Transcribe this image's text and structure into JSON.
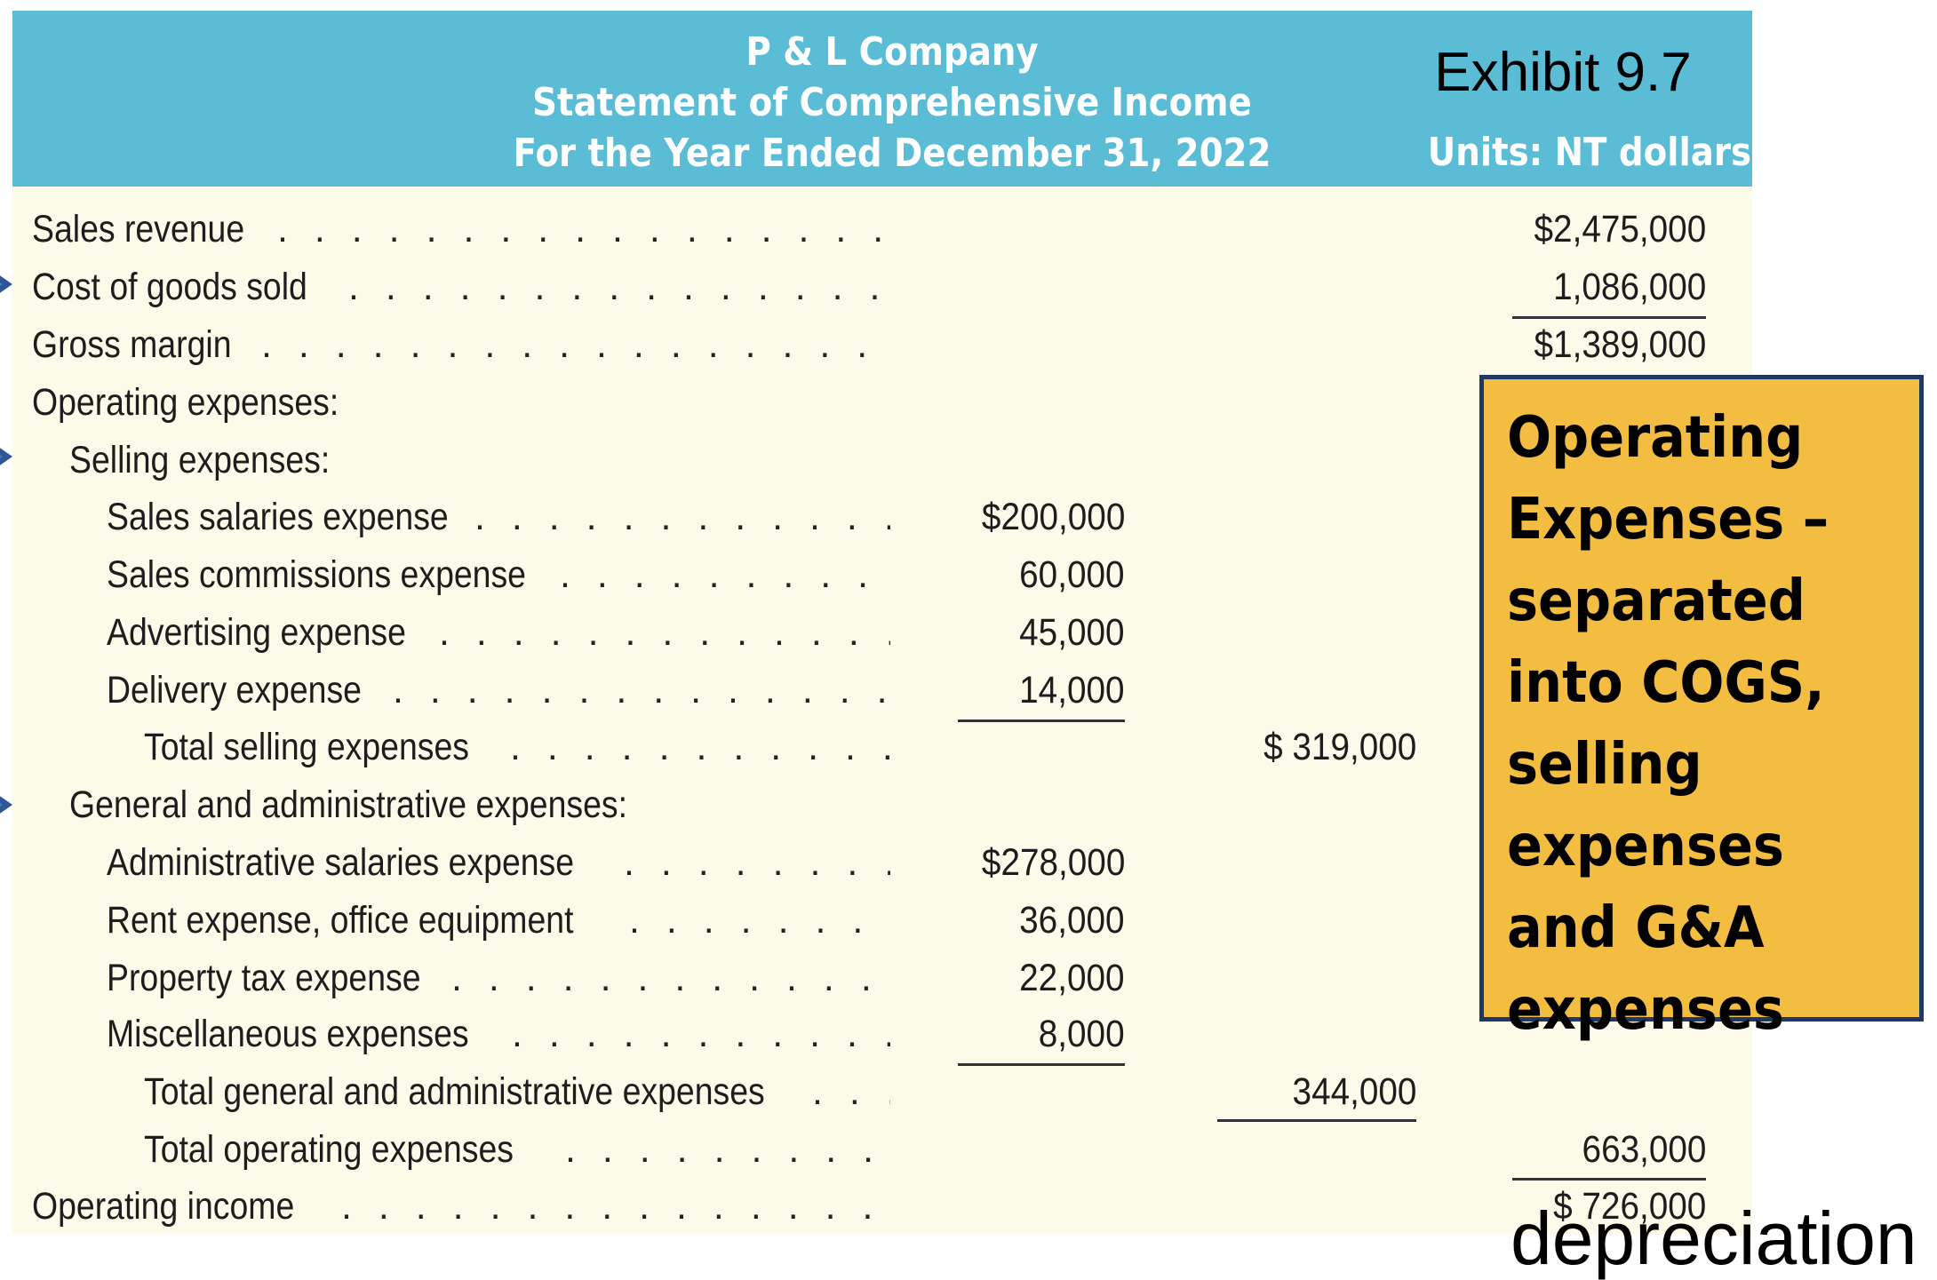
{
  "header": {
    "company": "P & L Company",
    "statement": "Statement of Comprehensive Income",
    "period": "For the Year Ended December 31, 2022",
    "exhibit": "Exhibit 9.7",
    "units": "Units: NT dollars"
  },
  "rows": [
    {
      "label": "Sales revenue",
      "c3": "$2,475,000"
    },
    {
      "label": "Cost of goods sold",
      "c3": "1,086,000"
    },
    {
      "label": "Gross margin",
      "c3": "$1,389,000"
    },
    {
      "label": "Operating expenses:"
    },
    {
      "label": "Selling expenses:"
    },
    {
      "label": "Sales salaries expense",
      "c1": "$200,000"
    },
    {
      "label": "Sales commissions expense",
      "c1": "60,000"
    },
    {
      "label": "Advertising expense",
      "c1": "45,000"
    },
    {
      "label": "Delivery expense",
      "c1": "14,000"
    },
    {
      "label": "Total selling expenses",
      "c2": "$  319,000"
    },
    {
      "label": "General and administrative expenses:"
    },
    {
      "label": "Administrative salaries expense",
      "c1": "$278,000"
    },
    {
      "label": "Rent expense, office equipment",
      "c1": "36,000"
    },
    {
      "label": "Property tax expense",
      "c1": "22,000"
    },
    {
      "label": "Miscellaneous expenses",
      "c1": "8,000"
    },
    {
      "label": "Total general and administrative expenses",
      "c2": "344,000"
    },
    {
      "label": "Total operating expenses",
      "c3": "663,000"
    },
    {
      "label": "Operating income",
      "c3": "$  726,000"
    }
  ],
  "callout": {
    "lines": [
      "Operating",
      "Expenses –",
      "separated",
      "into COGS,",
      "selling",
      "expenses",
      "and G&A",
      "expenses"
    ],
    "color": "#f2bd41",
    "border": "#1f3763"
  },
  "colors": {
    "header_bg": "#5bbcd6",
    "body_bg": "#fcfbe9",
    "arrow": "#2f5597"
  },
  "partial_text": "depreciation"
}
